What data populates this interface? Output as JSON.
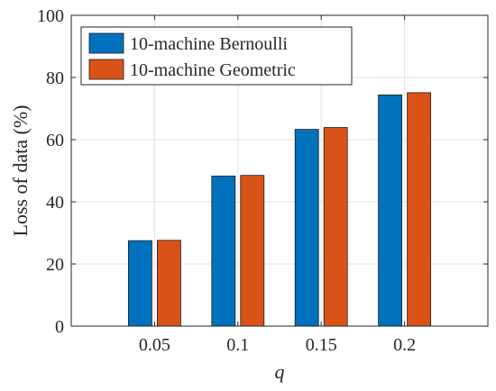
{
  "chart_data": {
    "type": "bar",
    "categories": [
      "0.05",
      "0.1",
      "0.15",
      "0.2"
    ],
    "series": [
      {
        "name": "10-machine Bernoulli",
        "values": [
          27.5,
          48.3,
          63.3,
          74.4
        ],
        "color": "#0072BD"
      },
      {
        "name": "10-machine Geometric",
        "values": [
          27.6,
          48.5,
          63.9,
          75.1
        ],
        "color": "#D95319"
      }
    ],
    "xlabel": "q",
    "ylabel": "Loss of data (%)",
    "ylim": [
      0,
      100
    ],
    "yticks": [
      0,
      20,
      40,
      60,
      80,
      100
    ],
    "grid": true,
    "legend_position": "top-left"
  }
}
